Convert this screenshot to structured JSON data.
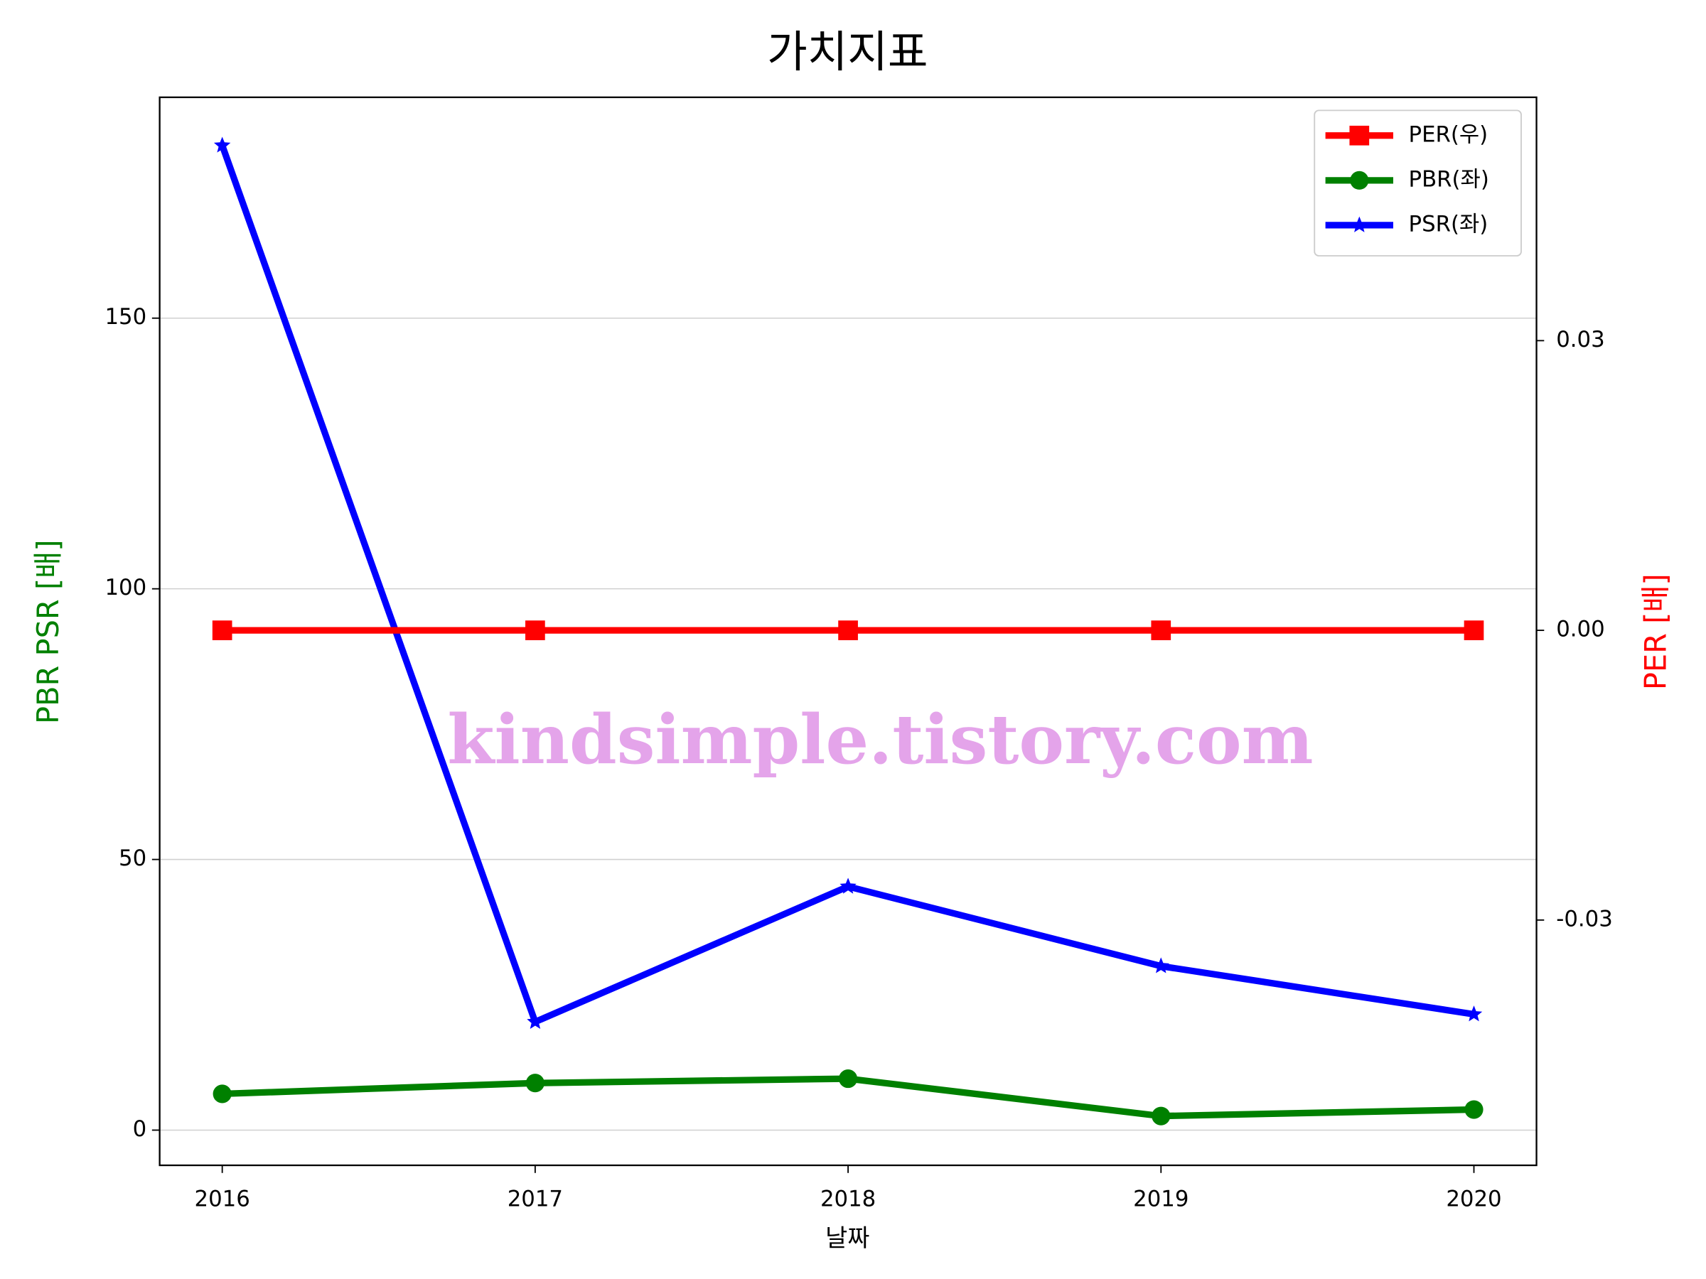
{
  "chart_data": {
    "type": "line",
    "title": "가치지표",
    "xlabel": "날짜",
    "ylabel": "PBR PSR [배]",
    "y2label": "PER [배]",
    "watermark": "kindsimple.tistory.com",
    "x": [
      2016,
      2017,
      2018,
      2019,
      2020
    ],
    "xlim": [
      2015.8,
      2020.2
    ],
    "xticks": [
      2016,
      2017,
      2018,
      2019,
      2020
    ],
    "ylim": [
      -6.5,
      190.8
    ],
    "yticks": [
      0,
      50,
      100,
      150
    ],
    "y2lim": [
      -0.0554,
      0.0552
    ],
    "y2ticks": [
      -0.03,
      {
        "value": 0,
        "label": "0.00"
      },
      0.03
    ],
    "grid": true,
    "legend": "upper right",
    "series": [
      {
        "name": "PER(우)",
        "color": "#ff0000",
        "marker": "square",
        "axis": "y2",
        "values": [
          0,
          0,
          0,
          0,
          0
        ]
      },
      {
        "name": "PBR(좌)",
        "color": "#008000",
        "marker": "circle",
        "values": [
          6.7,
          8.7,
          9.5,
          2.6,
          3.8
        ]
      },
      {
        "name": "PSR(좌)",
        "color": "#0000ff",
        "marker": "star",
        "values": [
          181.9,
          20.0,
          45.0,
          30.3,
          21.4
        ]
      }
    ]
  }
}
